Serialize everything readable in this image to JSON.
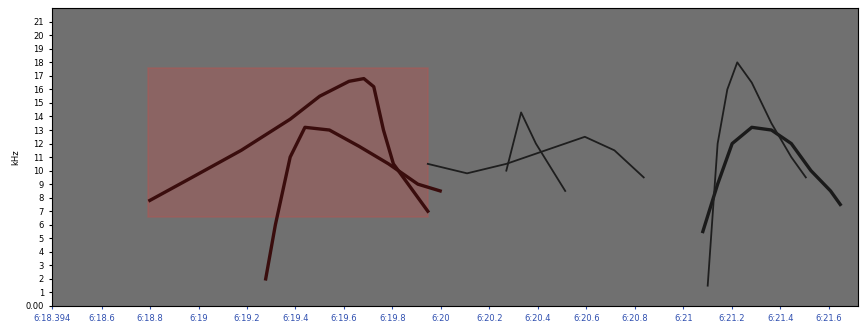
{
  "chart_data": {
    "type": "line",
    "y_label": "kHz",
    "xlim": [
      378.394,
      381.72
    ],
    "xticks": [
      {
        "value": 378.394,
        "label": "6:18.394"
      },
      {
        "value": 378.6,
        "label": "6:18.6"
      },
      {
        "value": 378.8,
        "label": "6:18.8"
      },
      {
        "value": 379.0,
        "label": "6:19"
      },
      {
        "value": 379.2,
        "label": "6:19.2"
      },
      {
        "value": 379.4,
        "label": "6:19.4"
      },
      {
        "value": 379.6,
        "label": "6:19.6"
      },
      {
        "value": 379.8,
        "label": "6:19.8"
      },
      {
        "value": 380.0,
        "label": "6:20"
      },
      {
        "value": 380.2,
        "label": "6:20.2"
      },
      {
        "value": 380.4,
        "label": "6:20.4"
      },
      {
        "value": 380.6,
        "label": "6:20.6"
      },
      {
        "value": 380.8,
        "label": "6:20.8"
      },
      {
        "value": 381.0,
        "label": "6:21"
      },
      {
        "value": 381.2,
        "label": "6:21.2"
      },
      {
        "value": 381.4,
        "label": "6:21.4"
      },
      {
        "value": 381.6,
        "label": "6:21.6"
      }
    ],
    "ylim": [
      0,
      22
    ],
    "yticks": [
      {
        "value": 0,
        "label": "0.00"
      },
      1,
      2,
      3,
      4,
      5,
      6,
      7,
      8,
      9,
      10,
      11,
      12,
      13,
      14,
      15,
      16,
      17,
      18,
      19,
      20,
      21
    ],
    "selection": {
      "x": [
        378.79,
        379.946
      ],
      "y": [
        6.6,
        17.6
      ],
      "color": "#c0504d"
    },
    "series": [
      {
        "color": "#3a0d0d",
        "x": [
          378.799,
          378.973,
          379.176,
          379.378,
          379.5,
          379.621,
          379.682,
          379.723,
          379.763,
          379.804,
          379.865,
          379.946
        ],
        "values": [
          7.8,
          9.5,
          11.5,
          13.8,
          15.5,
          16.6,
          16.8,
          16.2,
          13.0,
          10.5,
          9.0,
          7.0
        ]
      },
      {
        "color": "#3a0d0d",
        "x": [
          379.277,
          379.317,
          379.378,
          379.439,
          379.54,
          379.662,
          379.784,
          379.905,
          379.997
        ],
        "values": [
          2.0,
          6.0,
          11.0,
          13.2,
          13.0,
          11.8,
          10.5,
          9.0,
          8.5
        ]
      },
      {
        "color": "#1e1e1e",
        "x": [
          379.946,
          380.108,
          380.27,
          380.432,
          380.594,
          380.716,
          380.837
        ],
        "values": [
          10.5,
          9.8,
          10.5,
          11.5,
          12.5,
          11.5,
          9.5
        ]
      },
      {
        "color": "#1e1e1e",
        "x": [
          380.27,
          380.331,
          380.392,
          380.513
        ],
        "values": [
          10.0,
          14.3,
          12.0,
          8.5
        ]
      },
      {
        "color": "#1a1a1a",
        "x": [
          381.081,
          381.142,
          381.202,
          381.283,
          381.364,
          381.446,
          381.527,
          381.608,
          381.648
        ],
        "values": [
          5.5,
          9.0,
          12.0,
          13.2,
          13.0,
          12.0,
          10.0,
          8.5,
          7.5
        ]
      },
      {
        "color": "#1e1e1e",
        "x": [
          381.101,
          381.142,
          381.182,
          381.223,
          381.283,
          381.364,
          381.446,
          381.506
        ],
        "values": [
          1.5,
          12.0,
          16.0,
          18.0,
          16.5,
          13.5,
          11.0,
          9.5
        ]
      }
    ]
  }
}
